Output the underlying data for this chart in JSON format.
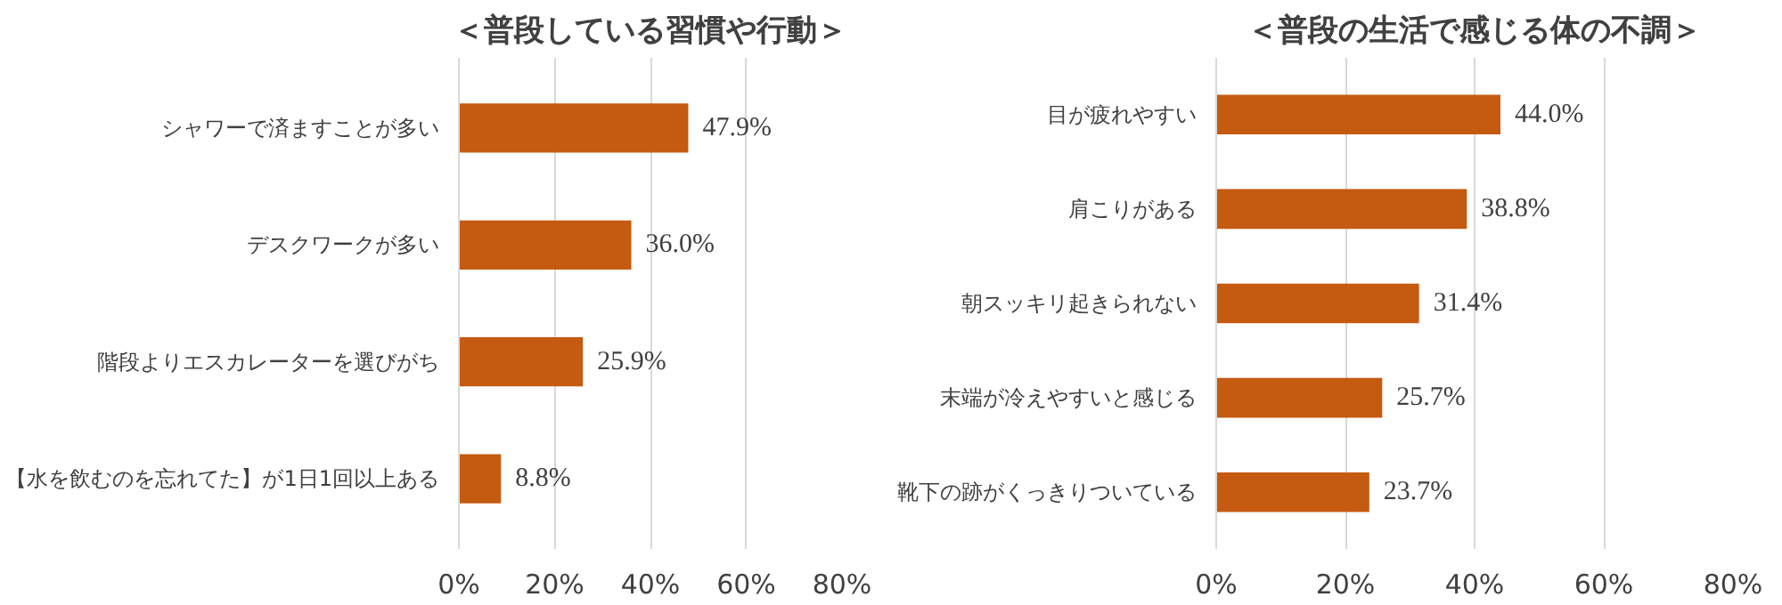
{
  "chart_data": [
    {
      "type": "bar",
      "orientation": "horizontal",
      "title": "＜普段している習慣や行動＞",
      "categories": [
        "シャワーで済ますことが多い",
        "デスクワークが多い",
        "階段よりエスカレーターを選びがち",
        "【水を飲むのを忘れてた】が1日1回以上ある"
      ],
      "values": [
        47.9,
        36.0,
        25.9,
        8.8
      ],
      "color": "#c55a11",
      "value_labels": [
        "47.9%",
        "36.0%",
        "25.9%",
        "8.8%"
      ],
      "xlim": [
        0,
        80
      ],
      "xticks": [
        {
          "value": 0,
          "label": "0%"
        },
        {
          "value": 20,
          "label": "20%"
        },
        {
          "value": 40,
          "label": "40%"
        },
        {
          "value": 60,
          "label": "60%"
        },
        {
          "value": 80,
          "label": "80%"
        }
      ],
      "grid": "x"
    },
    {
      "type": "bar",
      "orientation": "horizontal",
      "title": "＜普段の生活で感じる体の不調＞",
      "categories": [
        "目が疲れやすい",
        "肩こりがある",
        "朝スッキリ起きられない",
        "末端が冷えやすいと感じる",
        "靴下の跡がくっきりついている"
      ],
      "values": [
        44.0,
        38.8,
        31.4,
        25.7,
        23.7
      ],
      "color": "#c55a11",
      "value_labels": [
        "44.0%",
        "38.8%",
        "31.4%",
        "25.7%",
        "23.7%"
      ],
      "xlim": [
        0,
        80
      ],
      "xticks": [
        {
          "value": 0,
          "label": "0%"
        },
        {
          "value": 20,
          "label": "20%"
        },
        {
          "value": 40,
          "label": "40%"
        },
        {
          "value": 60,
          "label": "60%"
        },
        {
          "value": 80,
          "label": "80%"
        }
      ],
      "grid": "x"
    }
  ]
}
